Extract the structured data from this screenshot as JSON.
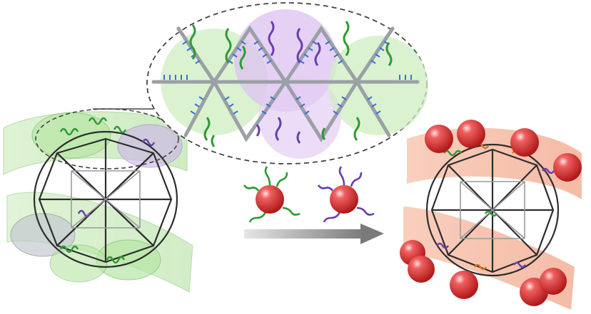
{
  "figure": {
    "panels": [
      "left-cage-with-strands",
      "zoom-inset",
      "nanoparticles",
      "reaction-arrow",
      "right-cage-with-nanoparticles"
    ],
    "colors": {
      "cage_frame": "#8f8f8f",
      "cage_frame_dark": "#2e2e2e",
      "green_strand": "#2f9a35",
      "green_fill": "#b8e6a8",
      "purple_strand": "#6a3fb0",
      "purple_fill": "#d9b6ee",
      "blue_bases": "#3a6fd8",
      "gray_tile": "#9aa0a6",
      "nanoparticle": "#e23b3b",
      "nanoparticle_highlight": "#ffd0d0",
      "orange_band": "#f4a88a",
      "arrow": "#9a9a9a"
    },
    "icons": {
      "nanoparticle_green": "nanoparticle-green-ligand-icon",
      "nanoparticle_purple": "nanoparticle-purple-ligand-icon",
      "arrow": "right-arrow-icon"
    }
  }
}
